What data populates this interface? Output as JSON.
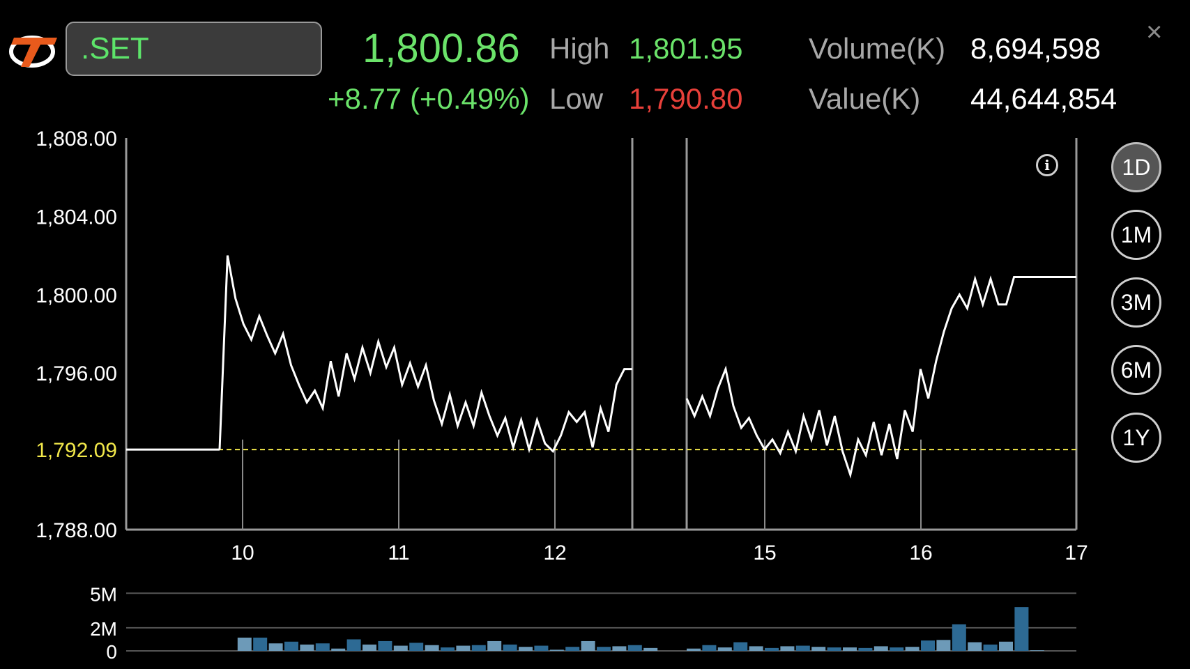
{
  "header": {
    "symbol": ".SET",
    "last_price": "1,800.86",
    "change": "+8.77 (+0.49%)",
    "high_label": "High",
    "high_value": "1,801.95",
    "low_label": "Low",
    "low_value": "1,790.80",
    "volume_label": "Volume(K)",
    "volume_value": "8,694,598",
    "value_label": "Value(K)",
    "value_value": "44,644,854",
    "close_icon": "×"
  },
  "periods": [
    "1D",
    "1M",
    "3M",
    "6M",
    "1Y"
  ],
  "active_period": "1D",
  "colors": {
    "up": "#6be36a",
    "down": "#e8403a",
    "ref_line": "#f2e84a",
    "bar": "#2d6a94",
    "bar_light": "#6d9ab8"
  },
  "chart_data": {
    "type": "line",
    "y_ticks": [
      "1,808.00",
      "1,804.00",
      "1,800.00",
      "1,796.00",
      "1,792.09",
      "1,788.00"
    ],
    "ylim": [
      1788,
      1808
    ],
    "reference_value": 1792.09,
    "x_ticks": [
      "10",
      "11",
      "12",
      "15",
      "16",
      "17"
    ],
    "session1": [
      1792.09,
      1792.09,
      1792.09,
      1792.09,
      1792.09,
      1792.09,
      1792.09,
      1792.09,
      1792.09,
      1792.09,
      1792.09,
      1792.09,
      1792.09,
      1792.09,
      1792.09,
      1792.09,
      1792.09,
      1792.09,
      1792.09,
      1792.09,
      1792.09,
      1792.09,
      1792.09,
      1792.09,
      1792.09,
      1792.09,
      1792.09,
      1792.09,
      1792.09,
      1792.09,
      1802.0,
      1799.8,
      1798.5,
      1797.7,
      1798.9,
      1797.9,
      1797.0,
      1798.0,
      1796.4,
      1795.4,
      1794.5,
      1795.1,
      1794.2,
      1796.6,
      1794.8,
      1797.0,
      1795.7,
      1797.3,
      1796.0,
      1797.6,
      1796.3,
      1797.3,
      1795.4,
      1796.5,
      1795.3,
      1796.4,
      1794.6,
      1793.4,
      1794.9,
      1793.3,
      1794.5,
      1793.3,
      1795.0,
      1793.8,
      1792.8,
      1793.7,
      1792.2,
      1793.6,
      1792.1,
      1793.6,
      1792.4,
      1792.0,
      1792.8,
      1794.0,
      1793.5,
      1794.0,
      1792.2,
      1794.2,
      1793.0,
      1795.4,
      1796.2,
      1796.2
    ],
    "session2": [
      1794.7,
      1793.8,
      1794.8,
      1793.8,
      1795.2,
      1796.2,
      1794.3,
      1793.2,
      1793.7,
      1792.8,
      1792.1,
      1792.6,
      1791.9,
      1793.0,
      1792.0,
      1793.8,
      1792.6,
      1794.1,
      1792.3,
      1793.8,
      1792.0,
      1790.8,
      1792.6,
      1791.8,
      1793.5,
      1791.8,
      1793.4,
      1791.6,
      1794.1,
      1793.0,
      1796.2,
      1794.7,
      1796.6,
      1798.1,
      1799.3,
      1800.0,
      1799.3,
      1800.8,
      1799.5,
      1800.8,
      1799.5,
      1799.5,
      1800.9,
      1800.9,
      1800.9,
      1800.9,
      1800.9,
      1800.9,
      1800.9,
      1800.9,
      1800.9
    ],
    "volume_ticks": [
      "5M",
      "2M",
      "0"
    ],
    "volume_max": 5.5,
    "volume_session1": [
      0,
      0,
      0,
      0,
      0,
      0,
      0,
      0,
      0,
      0,
      0,
      0,
      1.15,
      1.15,
      0.65,
      0.8,
      0.55,
      0.65,
      0.2,
      1.0,
      0.55,
      0.85,
      0.45,
      0.7,
      0.5,
      0.3,
      0.45,
      0.5,
      0.85,
      0.55,
      0.35,
      0.45,
      0.1,
      0.35,
      0.85,
      0.35,
      0.4,
      0.5,
      0.25
    ],
    "volume_session2": [
      0.2,
      0.5,
      0.3,
      0.75,
      0.4,
      0.25,
      0.4,
      0.45,
      0.35,
      0.3,
      0.3,
      0.25,
      0.4,
      0.3,
      0.35,
      0.9,
      0.95,
      2.3,
      0.75,
      0.55,
      0.8,
      3.8,
      0.05
    ]
  }
}
